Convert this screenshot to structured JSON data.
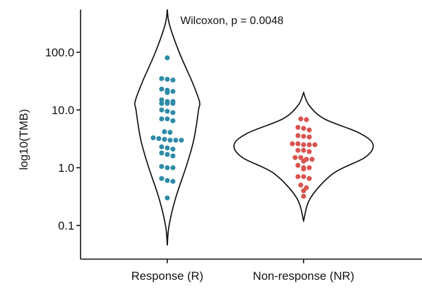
{
  "chart_data": {
    "type": "violin",
    "ylabel": "log10(TMB)",
    "y_scale": "log10",
    "ylim": [
      0.04,
      600
    ],
    "y_ticks": [
      {
        "value": 0.1,
        "label": "0.1"
      },
      {
        "value": 1.0,
        "label": "1.0"
      },
      {
        "value": 10.0,
        "label": "10.0"
      },
      {
        "value": 100.0,
        "label": "100.0"
      }
    ],
    "categories": [
      "Response (R)",
      "Non-response (NR)"
    ],
    "annotation": "Wilcoxon, p = 0.0048",
    "grid": false,
    "legend": "none",
    "colors": {
      "Response (R)": "#2e8ba8",
      "Non-response (NR)": "#d9534f"
    },
    "series": [
      {
        "category": "Response (R)",
        "values": [
          80,
          35,
          34,
          33,
          23,
          22,
          21,
          20,
          15,
          14,
          14,
          13,
          13,
          13,
          10,
          9.5,
          9,
          7,
          7,
          6.5,
          4.2,
          4.1,
          3.3,
          3.2,
          3.1,
          3.0,
          3.0,
          3.0,
          2.3,
          2.2,
          2.1,
          1.8,
          1.7,
          1.6,
          1.05,
          1.0,
          1.0,
          0.65,
          0.6,
          0.58,
          0.3
        ],
        "violin_profile": [
          {
            "y": 0.045,
            "w": 0.0
          },
          {
            "y": 0.1,
            "w": 0.04
          },
          {
            "y": 0.3,
            "w": 0.19
          },
          {
            "y": 1.0,
            "w": 0.42
          },
          {
            "y": 3.0,
            "w": 0.6
          },
          {
            "y": 10.0,
            "w": 0.71
          },
          {
            "y": 14.0,
            "w": 0.73
          },
          {
            "y": 30.0,
            "w": 0.57
          },
          {
            "y": 100.0,
            "w": 0.27
          },
          {
            "y": 300.0,
            "w": 0.05
          },
          {
            "y": 550.0,
            "w": 0.0
          }
        ]
      },
      {
        "category": "Non-response (NR)",
        "values": [
          7,
          6.8,
          5,
          4.8,
          4.5,
          3.6,
          3.5,
          3.4,
          2.6,
          2.6,
          2.5,
          2.5,
          2.5,
          2.0,
          2.0,
          1.9,
          1.5,
          1.5,
          1.4,
          1.4,
          1.3,
          1.1,
          1.0,
          1.0,
          0.95,
          0.7,
          0.7,
          0.65,
          0.5,
          0.45,
          0.4,
          0.32
        ],
        "violin_profile": [
          {
            "y": 0.12,
            "w": 0.0
          },
          {
            "y": 0.3,
            "w": 0.1
          },
          {
            "y": 0.8,
            "w": 0.43
          },
          {
            "y": 1.5,
            "w": 0.88
          },
          {
            "y": 2.5,
            "w": 1.0
          },
          {
            "y": 4.0,
            "w": 0.8
          },
          {
            "y": 7.0,
            "w": 0.3
          },
          {
            "y": 12.0,
            "w": 0.08
          },
          {
            "y": 20.0,
            "w": 0.0
          }
        ]
      }
    ]
  }
}
